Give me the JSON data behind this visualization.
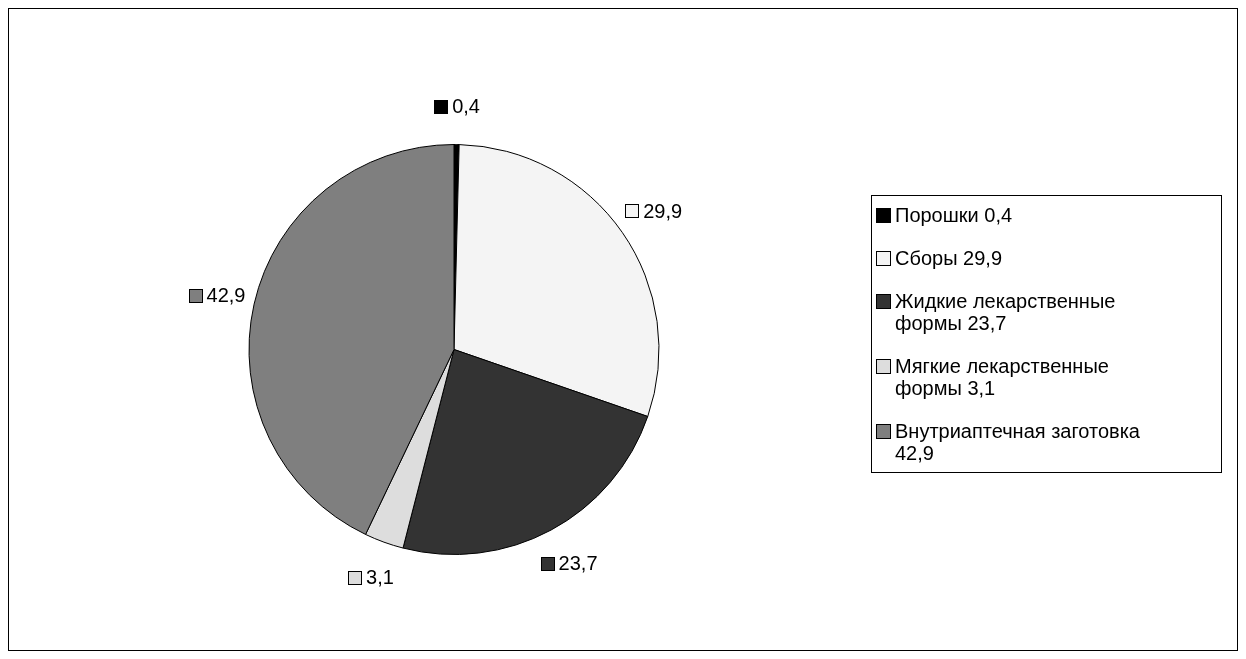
{
  "chart_data": {
    "type": "pie",
    "categories": [
      "Порошки",
      "Сборы",
      "Жидкие лекарственные формы",
      "Мягкие лекарственные формы",
      "Внутриаптечная заготовка"
    ],
    "values": [
      0.4,
      29.9,
      23.7,
      3.1,
      42.9
    ],
    "value_labels": [
      "0,4",
      "29,9",
      "23,7",
      "3,1",
      "42,9"
    ],
    "colors": [
      "#000000",
      "#f4f4f4",
      "#333333",
      "#dddddd",
      "#7f7f7f"
    ],
    "legend": "right"
  }
}
